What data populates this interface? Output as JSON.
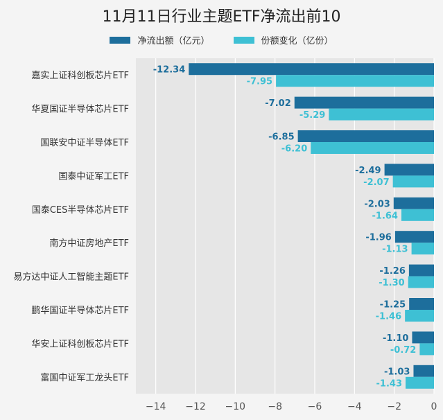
{
  "title": "11月11日行业主题ETF净流出前10",
  "legend": {
    "series1": "净流出额（亿元）",
    "series2": "份额变化（亿份）"
  },
  "colors": {
    "series1": "#1d6e9c",
    "series2": "#3ec0d4",
    "plot_bg": "#e6e6e6",
    "grid": "#ffffff"
  },
  "chart_data": {
    "type": "bar",
    "orientation": "horizontal",
    "title": "11月11日行业主题ETF净流出前10",
    "categories": [
      "嘉实上证科创板芯片ETF",
      "华夏国证半导体芯片ETF",
      "国联安中证半导体ETF",
      "国泰中证军工ETF",
      "国泰CES半导体芯片ETF",
      "南方中证房地产ETF",
      "易方达中证人工智能主题ETF",
      "鹏华国证半导体芯片ETF",
      "华安上证科创板芯片ETF",
      "富国中证军工龙头ETF"
    ],
    "series": [
      {
        "name": "净流出额（亿元）",
        "values": [
          -12.34,
          -7.02,
          -6.85,
          -2.49,
          -2.03,
          -1.96,
          -1.26,
          -1.25,
          -1.1,
          -1.03
        ]
      },
      {
        "name": "份额变化（亿份）",
        "values": [
          -7.95,
          -5.29,
          -6.2,
          -2.07,
          -1.64,
          -1.13,
          -1.3,
          -1.46,
          -0.72,
          -1.43
        ]
      }
    ],
    "xlim": [
      -15,
      0
    ],
    "xticks": [
      -14,
      -12,
      -10,
      -8,
      -6,
      -4,
      -2,
      0
    ],
    "grid": true,
    "legend_position": "top"
  }
}
